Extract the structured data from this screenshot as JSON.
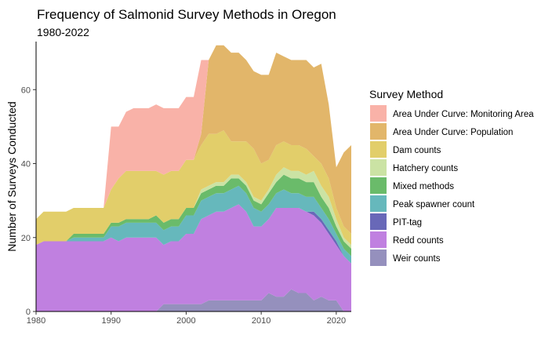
{
  "chart_data": {
    "type": "area",
    "stacked": true,
    "title": "Frequency of Salmonid Survey Methods in Oregon",
    "subtitle": "1980-2022",
    "xlabel": "",
    "ylabel": "Number of Surveys Conducted",
    "xlim": [
      1980,
      2022
    ],
    "ylim": [
      0,
      73
    ],
    "x_ticks": [
      1980,
      1990,
      2000,
      2010,
      2020
    ],
    "y_ticks": [
      0,
      20,
      40,
      60
    ],
    "grid": false,
    "legend_title": "Survey Method",
    "legend_position": "right",
    "x": [
      1980,
      1981,
      1982,
      1983,
      1984,
      1985,
      1986,
      1987,
      1988,
      1989,
      1990,
      1991,
      1992,
      1993,
      1994,
      1995,
      1996,
      1997,
      1998,
      1999,
      2000,
      2001,
      2002,
      2003,
      2004,
      2005,
      2006,
      2007,
      2008,
      2009,
      2010,
      2011,
      2012,
      2013,
      2014,
      2015,
      2016,
      2017,
      2018,
      2019,
      2020,
      2021,
      2022
    ],
    "series": [
      {
        "name": "Weir counts",
        "color": "#9590bd",
        "values": [
          0,
          0,
          0,
          0,
          0,
          0,
          0,
          0,
          0,
          0,
          0,
          0,
          0,
          0,
          0,
          0,
          0,
          2,
          2,
          2,
          2,
          2,
          2,
          3,
          3,
          3,
          3,
          3,
          3,
          3,
          3,
          5,
          4,
          4,
          6,
          5,
          5,
          3,
          4,
          3,
          3,
          0,
          0
        ]
      },
      {
        "name": "Redd counts",
        "color": "#c080e0",
        "values": [
          18,
          19,
          19,
          19,
          19,
          19,
          19,
          19,
          19,
          19,
          20,
          19,
          20,
          20,
          20,
          20,
          20,
          16,
          17,
          17,
          19,
          19,
          23,
          23,
          24,
          24,
          25,
          26,
          24,
          20,
          20,
          20,
          24,
          24,
          22,
          23,
          22,
          23,
          20,
          18,
          15,
          15,
          13
        ]
      },
      {
        "name": "PIT-tag",
        "color": "#6868b8",
        "values": [
          0,
          0,
          0,
          0,
          0,
          0,
          0,
          0,
          0,
          0,
          0,
          0,
          0,
          0,
          0,
          0,
          0,
          0,
          0,
          0,
          0,
          0,
          0,
          0,
          0,
          0,
          0,
          0,
          0,
          0,
          0,
          0,
          0,
          0,
          0,
          0,
          0,
          1,
          1,
          1,
          1,
          0,
          0
        ]
      },
      {
        "name": "Peak spawner count",
        "color": "#66b8bc",
        "values": [
          0,
          0,
          0,
          0,
          0,
          1,
          1,
          1,
          1,
          1,
          3,
          4,
          4,
          4,
          4,
          4,
          4,
          4,
          4,
          4,
          5,
          5,
          5,
          5,
          5,
          5,
          5,
          5,
          5,
          5,
          4,
          4,
          4,
          5,
          4,
          4,
          4,
          4,
          3,
          3,
          2,
          2,
          2
        ]
      },
      {
        "name": "Mixed methods",
        "color": "#6abb6a",
        "values": [
          0,
          0,
          0,
          0,
          0,
          1,
          1,
          1,
          1,
          1,
          1,
          1,
          1,
          1,
          1,
          1,
          2,
          2,
          2,
          2,
          2,
          2,
          2,
          2,
          2,
          2,
          3,
          2,
          2,
          2,
          2,
          3,
          3,
          4,
          4,
          4,
          4,
          4,
          3,
          3,
          2,
          2,
          2
        ]
      },
      {
        "name": "Hatchery counts",
        "color": "#cbe3a4",
        "values": [
          0,
          0,
          0,
          0,
          0,
          0,
          0,
          0,
          0,
          0,
          0,
          0,
          0,
          0,
          0,
          0,
          0,
          0,
          0,
          0,
          0,
          0,
          1,
          1,
          1,
          1,
          1,
          1,
          1,
          1,
          1,
          1,
          2,
          2,
          2,
          2,
          2,
          3,
          3,
          3,
          2,
          1,
          1
        ]
      },
      {
        "name": "Dam counts",
        "color": "#e2ce6a",
        "values": [
          7,
          8,
          8,
          8,
          8,
          7,
          7,
          7,
          7,
          7,
          9,
          12,
          13,
          13,
          13,
          13,
          12,
          13,
          13,
          13,
          13,
          13,
          12,
          14,
          13,
          14,
          9,
          9,
          11,
          13,
          10,
          8,
          8,
          7,
          7,
          7,
          7,
          4,
          6,
          5,
          3,
          3,
          3
        ]
      },
      {
        "name": "Area Under Curve: Population",
        "color": "#e2b66a",
        "values": [
          0,
          0,
          0,
          0,
          0,
          0,
          0,
          0,
          0,
          0,
          0,
          0,
          0,
          0,
          0,
          0,
          0,
          0,
          0,
          0,
          0,
          0,
          3,
          20,
          24,
          23,
          24,
          24,
          22,
          21,
          24,
          23,
          25,
          23,
          23,
          23,
          24,
          24,
          27,
          20,
          11,
          20,
          24
        ]
      },
      {
        "name": "Area Under Curve: Monitoring Area",
        "color": "#f9b2a8",
        "values": [
          0,
          0,
          0,
          0,
          0,
          0,
          0,
          0,
          0,
          0,
          17,
          14,
          16,
          17,
          17,
          17,
          18,
          18,
          17,
          17,
          17,
          17,
          20,
          0,
          0,
          0,
          0,
          0,
          0,
          0,
          0,
          0,
          0,
          0,
          0,
          0,
          0,
          0,
          0,
          0,
          0,
          0,
          0
        ]
      }
    ]
  }
}
